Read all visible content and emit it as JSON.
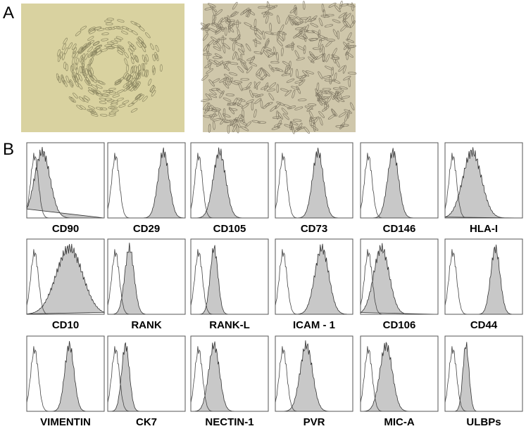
{
  "panels": [
    {
      "label": "A"
    },
    {
      "label": "B"
    }
  ],
  "markers": [
    "CD90",
    "CD29",
    "CD105",
    "CD73",
    "CD146",
    "HLA-I",
    "CD10",
    "RANK",
    "RANK-L",
    "ICAM - 1",
    "CD106",
    "CD44",
    "VIMENTIN",
    "CK7",
    "NECTIN-1",
    "PVR",
    "MIC-A",
    "ULBPs"
  ]
}
